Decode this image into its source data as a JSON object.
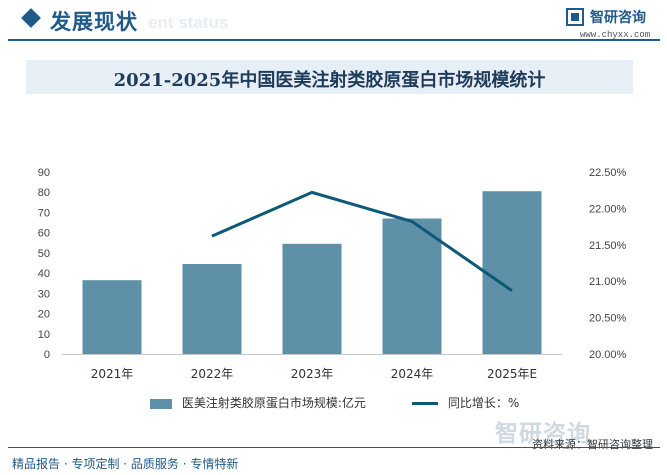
{
  "header": {
    "title": "发展现状",
    "subtitle_en": "ent status",
    "brand": "智研咨询",
    "url": "www.chyxx.com"
  },
  "chart_data": {
    "type": "bar",
    "title": "2021-2025年中国医美注射类胶原蛋白市场规模统计",
    "categories": [
      "2021年",
      "2022年",
      "2023年",
      "2024年",
      "2025年E"
    ],
    "series": [
      {
        "name": "医美注射类胶原蛋白市场规模:亿元",
        "type": "bar",
        "axis": "left",
        "values": [
          36.5,
          44.5,
          54.5,
          67,
          80.5
        ]
      },
      {
        "name": "同比增长：%",
        "type": "line",
        "axis": "right",
        "values": [
          null,
          21.62,
          22.22,
          21.82,
          20.87
        ]
      }
    ],
    "y_left": {
      "min": 0,
      "max": 90,
      "ticks": [
        0,
        10,
        20,
        30,
        40,
        50,
        60,
        70,
        80,
        90
      ]
    },
    "y_right": {
      "min": 20.0,
      "max": 22.5,
      "ticks": [
        "20.00%",
        "20.50%",
        "21.00%",
        "21.50%",
        "22.00%",
        "22.50%"
      ]
    },
    "colors": {
      "bar": "#5e90a8",
      "line": "#0d5a78"
    },
    "grid": false,
    "legend_position": "bottom"
  },
  "footer": {
    "watermark": "智研咨询",
    "source": "资料来源：智研咨询整理",
    "services": "精品报告 · 专项定制 · 品质服务 · 专情特新"
  }
}
